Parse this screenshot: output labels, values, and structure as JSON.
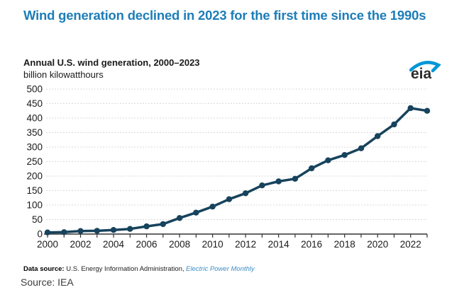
{
  "header": {
    "title": "Wind generation declined in 2023 for the first time since the 1990s",
    "title_color": "#1d7db8"
  },
  "chart": {
    "subtitle": "Annual U.S. wind generation, 2000–2023",
    "unit_label": "billion kilowatthours"
  },
  "logo": {
    "text": "eia",
    "swoosh_color": "#0096d7"
  },
  "chart_data": {
    "type": "line",
    "title": "Annual U.S. wind generation, 2000–2023",
    "xlabel": "",
    "ylabel": "billion kilowatthours",
    "x": [
      2000,
      2001,
      2002,
      2003,
      2004,
      2005,
      2006,
      2007,
      2008,
      2009,
      2010,
      2011,
      2012,
      2013,
      2014,
      2015,
      2016,
      2017,
      2018,
      2019,
      2020,
      2021,
      2022,
      2023
    ],
    "values": [
      5.6,
      6.7,
      10.4,
      11.2,
      14.1,
      17.8,
      26.6,
      34.4,
      55.4,
      73.9,
      94.7,
      120.2,
      140.8,
      167.8,
      181.7,
      190.7,
      226.9,
      254.3,
      272.7,
      295.9,
      337.9,
      378.2,
      434.3,
      425.2
    ],
    "ylim": [
      0,
      500
    ],
    "ytick_step": 50,
    "xtick_labels": [
      "2000",
      "2002",
      "2004",
      "2006",
      "2008",
      "2010",
      "2012",
      "2014",
      "2016",
      "2018",
      "2020",
      "2022"
    ],
    "grid": true,
    "legend": "none",
    "line_color": "#17435c",
    "grid_color": "#d9d9d9",
    "axis_color": "#333333",
    "tick_label_color": "#1a1a1a"
  },
  "footer": {
    "datasource_prefix": "Data source:",
    "datasource_text": " U.S. Energy Information Administration, ",
    "datasource_link": "Electric Power Monthly"
  },
  "caption": "Source: IEA"
}
